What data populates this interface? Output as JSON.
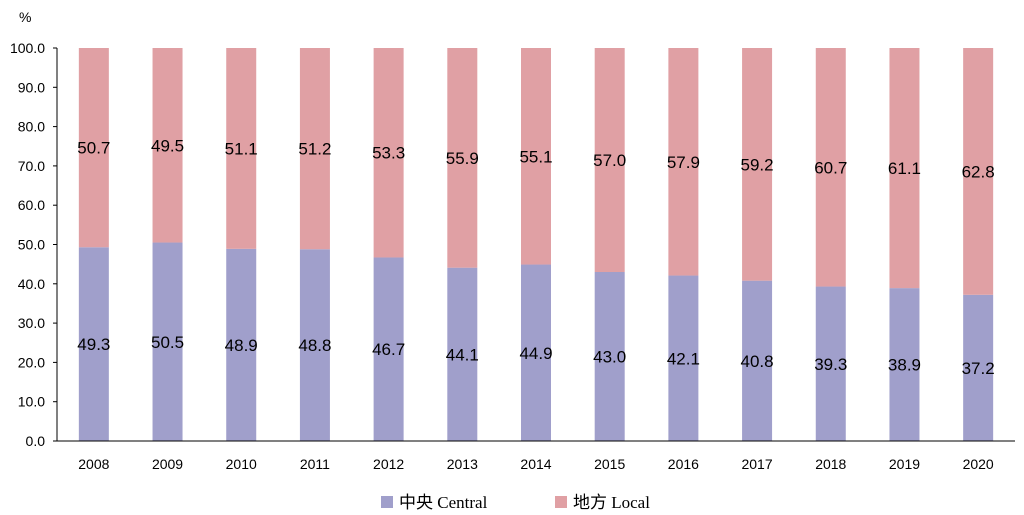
{
  "chart_data": {
    "type": "bar",
    "stacked": true,
    "categories": [
      "2008",
      "2009",
      "2010",
      "2011",
      "2012",
      "2013",
      "2014",
      "2015",
      "2016",
      "2017",
      "2018",
      "2019",
      "2020"
    ],
    "series": [
      {
        "name": "中央 Central",
        "color": "#a09fcb",
        "values": [
          49.3,
          50.5,
          48.9,
          48.8,
          46.7,
          44.1,
          44.9,
          43.0,
          42.1,
          40.8,
          39.3,
          38.9,
          37.2
        ],
        "labels": [
          "49.3",
          "50.5",
          "48.9",
          "48.8",
          "46.7",
          "44.1",
          "44.9",
          "43.0",
          "42.1",
          "40.8",
          "39.3",
          "38.9",
          "37.2"
        ]
      },
      {
        "name": "地方 Local",
        "color": "#e0a0a4",
        "values": [
          50.7,
          49.5,
          51.1,
          51.2,
          53.3,
          55.9,
          55.1,
          57.0,
          57.9,
          59.2,
          60.7,
          61.1,
          62.8
        ],
        "labels": [
          "50.7",
          "49.5",
          "51.1",
          "51.2",
          "53.3",
          "55.9",
          "55.1",
          "57.0",
          "57.9",
          "59.2",
          "60.7",
          "61.1",
          "62.8"
        ]
      }
    ],
    "ylabel": "%",
    "ylim": [
      0,
      100
    ],
    "yticks": [
      "0.0",
      "10.0",
      "20.0",
      "30.0",
      "40.0",
      "50.0",
      "60.0",
      "70.0",
      "80.0",
      "90.0",
      "100.0"
    ],
    "grid": false,
    "legend_position": "bottom"
  }
}
